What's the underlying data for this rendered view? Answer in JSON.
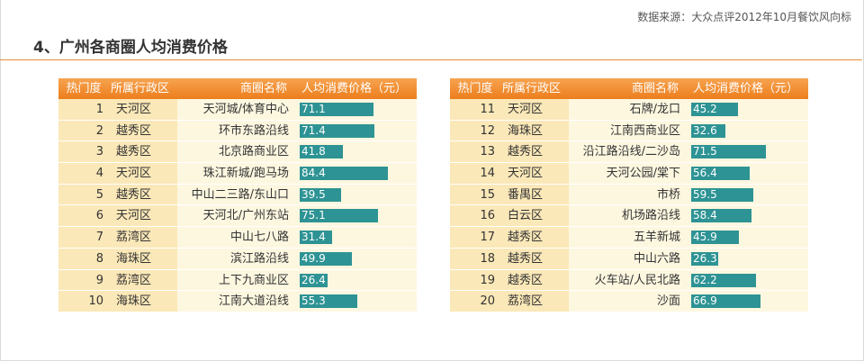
{
  "source": "数据来源：大众点评2012年10月餐饮风向标",
  "title": "4、广州各商圈人均消费价格",
  "headers": {
    "rank": "热门度",
    "district": "所属行政区",
    "name": "商圈名称",
    "price": "人均消费价格（元）"
  },
  "colors": {
    "header": "#ec7e1c",
    "bar": "#2e9394",
    "row": "#fdf7e0",
    "row_key": "#fbe8b8",
    "rule": "#e8913a"
  },
  "chart_data": {
    "type": "table",
    "max_value": 90,
    "rows": [
      {
        "rank": "1",
        "district": "天河区",
        "name": "天河城/体育中心",
        "price": 71.1
      },
      {
        "rank": "2",
        "district": "越秀区",
        "name": "环市东路沿线",
        "price": 71.4
      },
      {
        "rank": "3",
        "district": "越秀区",
        "name": "北京路商业区",
        "price": 41.8
      },
      {
        "rank": "4",
        "district": "天河区",
        "name": "珠江新城/跑马场",
        "price": 84.4
      },
      {
        "rank": "5",
        "district": "越秀区",
        "name": "中山二三路/东山口",
        "price": 39.5
      },
      {
        "rank": "6",
        "district": "天河区",
        "name": "天河北/广州东站",
        "price": 75.1
      },
      {
        "rank": "7",
        "district": "荔湾区",
        "name": "中山七八路",
        "price": 31.4
      },
      {
        "rank": "8",
        "district": "海珠区",
        "name": "滨江路沿线",
        "price": 49.9
      },
      {
        "rank": "9",
        "district": "荔湾区",
        "name": "上下九商业区",
        "price": 26.4
      },
      {
        "rank": "10",
        "district": "海珠区",
        "name": "江南大道沿线",
        "price": 55.3
      },
      {
        "rank": "11",
        "district": "天河区",
        "name": "石牌/龙口",
        "price": 45.2
      },
      {
        "rank": "12",
        "district": "海珠区",
        "name": "江南西商业区",
        "price": 32.6
      },
      {
        "rank": "13",
        "district": "越秀区",
        "name": "沿江路沿线/二沙岛",
        "price": 71.5
      },
      {
        "rank": "14",
        "district": "天河区",
        "name": "天河公园/棠下",
        "price": 56.4
      },
      {
        "rank": "15",
        "district": "番禺区",
        "name": "市桥",
        "price": 59.5
      },
      {
        "rank": "16",
        "district": "白云区",
        "name": "机场路沿线",
        "price": 58.4
      },
      {
        "rank": "17",
        "district": "越秀区",
        "name": "五羊新城",
        "price": 45.9
      },
      {
        "rank": "18",
        "district": "越秀区",
        "name": "中山六路",
        "price": 26.3
      },
      {
        "rank": "19",
        "district": "越秀区",
        "name": "火车站/人民北路",
        "price": 62.2
      },
      {
        "rank": "20",
        "district": "荔湾区",
        "name": "沙面",
        "price": 66.9
      }
    ]
  }
}
